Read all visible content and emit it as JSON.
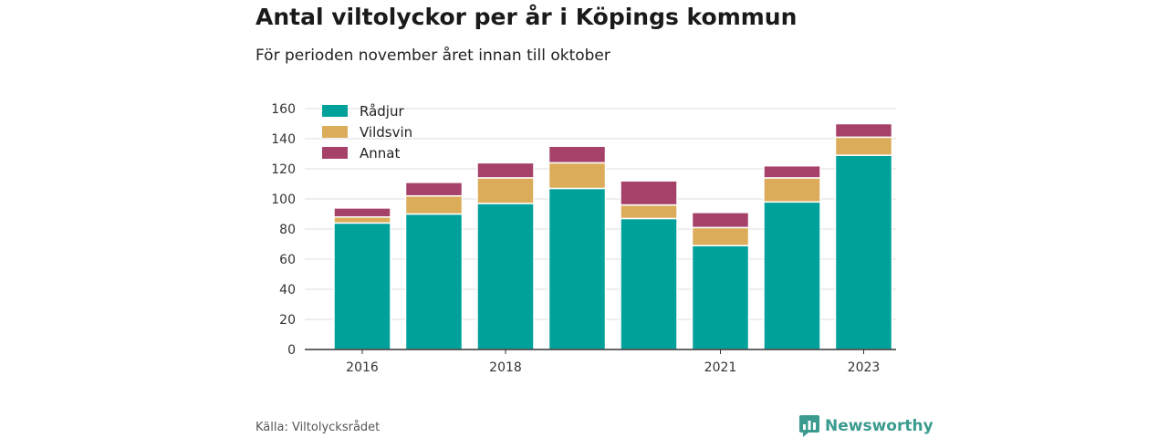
{
  "header": {
    "title": "Antal viltolyckor per år i Köpings kommun",
    "subtitle": "För perioden november året innan till oktober"
  },
  "footer": {
    "source": "Källa: Viltolycksrådet",
    "brand": "Newsworthy",
    "brand_icon": "bar-chart-logo-icon"
  },
  "chart_data": {
    "type": "bar",
    "stacked": true,
    "categories": [
      "2016",
      "2017",
      "2018",
      "2019",
      "2020",
      "2021",
      "2022",
      "2023"
    ],
    "x_tick_labels": [
      "2016",
      "",
      "2018",
      "",
      "",
      "2021",
      "",
      "2023"
    ],
    "series": [
      {
        "name": "Rådjur",
        "color": "#00a19a",
        "values": [
          84,
          90,
          97,
          107,
          87,
          69,
          98,
          129
        ]
      },
      {
        "name": "Vildsvin",
        "color": "#dbad5a",
        "values": [
          4,
          12,
          17,
          17,
          9,
          12,
          16,
          12
        ]
      },
      {
        "name": "Annat",
        "color": "#a6426a",
        "values": [
          6,
          9,
          10,
          11,
          16,
          10,
          8,
          9
        ]
      }
    ],
    "ylim": [
      0,
      160
    ],
    "yticks": [
      0,
      20,
      40,
      60,
      80,
      100,
      120,
      140,
      160
    ],
    "grid": true,
    "legend": "top-left"
  }
}
